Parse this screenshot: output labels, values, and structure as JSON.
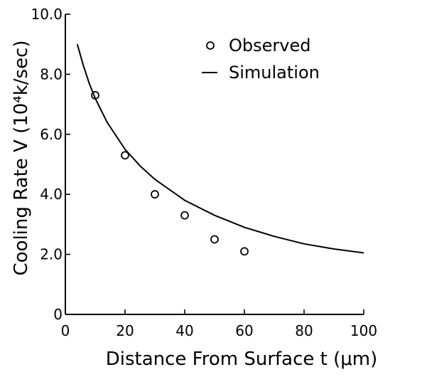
{
  "chart_data": {
    "type": "scatter",
    "title": "",
    "xlabel": "Distance From Surface t (μm)",
    "ylabel": "Cooling Rate V (10⁴k/sec)",
    "xlim": [
      0,
      100
    ],
    "ylim": [
      0,
      10
    ],
    "x_ticks": [
      "0",
      "20",
      "40",
      "60",
      "80",
      "100"
    ],
    "y_ticks": [
      "0",
      "2.0",
      "4.0",
      "6.0",
      "8.0",
      "10.0"
    ],
    "grid": false,
    "legend_position": "top-right",
    "series": [
      {
        "name": "Observed",
        "type": "scatter",
        "marker": "open-circle",
        "x": [
          10,
          20,
          30,
          40,
          50,
          60
        ],
        "y": [
          7.3,
          5.3,
          4.0,
          3.3,
          2.5,
          2.1
        ]
      },
      {
        "name": "Simulation",
        "type": "line",
        "x": [
          4,
          6,
          8,
          10,
          14,
          20,
          25,
          30,
          40,
          50,
          60,
          70,
          80,
          90,
          100
        ],
        "y": [
          9.0,
          8.3,
          7.7,
          7.2,
          6.4,
          5.5,
          4.95,
          4.5,
          3.8,
          3.3,
          2.9,
          2.6,
          2.35,
          2.18,
          2.05
        ]
      }
    ]
  }
}
